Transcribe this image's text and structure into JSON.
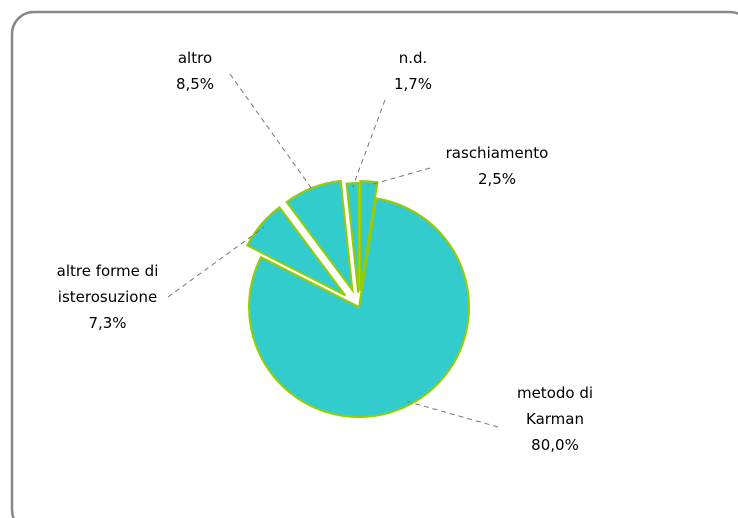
{
  "chart_data": {
    "type": "pie",
    "categories": [
      "raschiamento",
      "metodo di Karman",
      "altre forme di isterosuzione",
      "altro",
      "n.d."
    ],
    "values": [
      2.5,
      80.0,
      7.3,
      8.5,
      1.7
    ],
    "value_labels": [
      "2,5%",
      "80,0%",
      "7,3%",
      "8,5%",
      "1,7%"
    ],
    "color": "#33cccc",
    "edge_color": "#99cc00"
  }
}
